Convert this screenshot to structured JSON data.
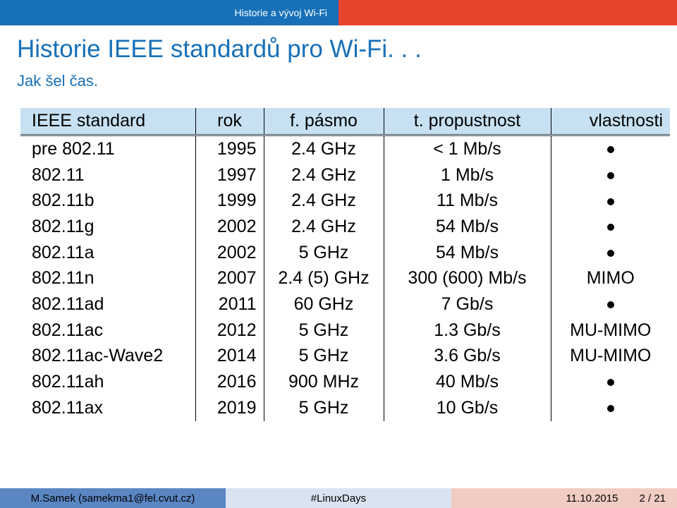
{
  "header": {
    "section_title": "Historie a vývoj Wi-Fi"
  },
  "slide": {
    "title": "Historie IEEE standardů pro Wi-Fi. . .",
    "subtitle": "Jak šel čas."
  },
  "table": {
    "headers": [
      "IEEE standard",
      "rok",
      "f. pásmo",
      "t. propustnost",
      "vlastnosti"
    ],
    "rows": [
      {
        "standard": "pre 802.11",
        "year": "1995",
        "band": "2.4 GHz",
        "throughput": "< 1 Mb/s",
        "features": ""
      },
      {
        "standard": "802.11",
        "year": "1997",
        "band": "2.4 GHz",
        "throughput": "1 Mb/s",
        "features": ""
      },
      {
        "standard": "802.11b",
        "year": "1999",
        "band": "2.4 GHz",
        "throughput": "11 Mb/s",
        "features": ""
      },
      {
        "standard": "802.11g",
        "year": "2002",
        "band": "2.4 GHz",
        "throughput": "54 Mb/s",
        "features": ""
      },
      {
        "standard": "802.11a",
        "year": "2002",
        "band": "5 GHz",
        "throughput": "54 Mb/s",
        "features": ""
      },
      {
        "standard": "802.11n",
        "year": "2007",
        "band": "2.4 (5) GHz",
        "throughput": "300 (600) Mb/s",
        "features": "MIMO"
      },
      {
        "standard": "802.11ad",
        "year": "2011",
        "band": "60 GHz",
        "throughput": "7 Gb/s",
        "features": ""
      },
      {
        "standard": "802.11ac",
        "year": "2012",
        "band": "5 GHz",
        "throughput": "1.3 Gb/s",
        "features": "MU-MIMO"
      },
      {
        "standard": "802.11ac-Wave2",
        "year": "2014",
        "band": "5 GHz",
        "throughput": "3.6 Gb/s",
        "features": "MU-MIMO"
      },
      {
        "standard": "802.11ah",
        "year": "2016",
        "band": "900 MHz",
        "throughput": "40 Mb/s",
        "features": ""
      },
      {
        "standard": "802.11ax",
        "year": "2019",
        "band": "5 GHz",
        "throughput": "10 Gb/s",
        "features": ""
      }
    ]
  },
  "footer": {
    "author": "M.Samek  (samekma1@fel.cvut.cz)",
    "event": "#LinuxDays",
    "date": "11.10.2015",
    "page": "2 / 21"
  },
  "colors": {
    "primary": "#1770b8",
    "accent": "#e8452d",
    "table_header": "#c7e1f3"
  }
}
